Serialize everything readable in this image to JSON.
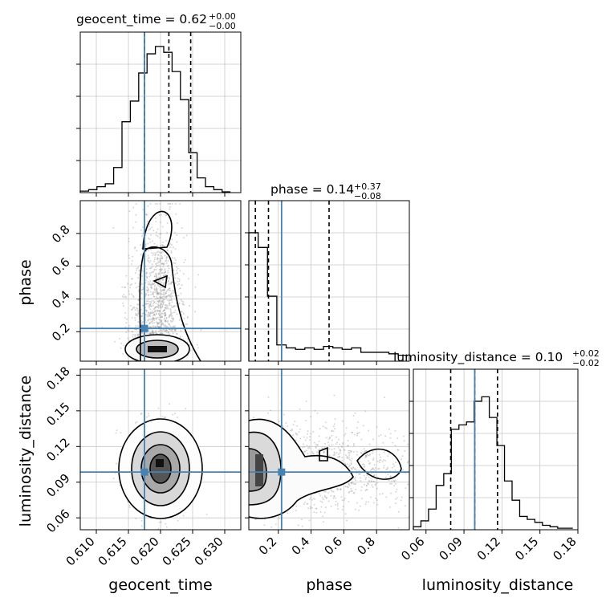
{
  "chart_data": {
    "type": "corner",
    "truth_color": "#4682b4",
    "truth": {
      "geocent_time": 0.6175,
      "phase": 0.22,
      "luminosity_distance": 0.0985
    },
    "panels": [
      {
        "id": "hist-geocent",
        "type": "histogram",
        "parameter": "geocent_time",
        "title": {
          "main": "geocent_time = 0.62",
          "sup": "+0.00",
          "sub": "−0.00"
        },
        "xlim": [
          0.6075,
          0.6325
        ],
        "ylim": [
          0,
          1.0
        ],
        "bins": [
          0.6075,
          0.6088,
          0.6101,
          0.6114,
          0.6127,
          0.614,
          0.6153,
          0.6166,
          0.6179,
          0.6192,
          0.6205,
          0.6218,
          0.6231,
          0.6244,
          0.6257,
          0.627,
          0.6283,
          0.6296,
          0.6309
        ],
        "counts": [
          0.01,
          0.02,
          0.04,
          0.06,
          0.17,
          0.48,
          0.62,
          0.81,
          0.94,
          0.99,
          0.95,
          0.82,
          0.63,
          0.27,
          0.1,
          0.04,
          0.02,
          0.005
        ],
        "quantile_lines": [
          0.6175,
          0.6213,
          0.6247
        ],
        "truth_line": 0.6175
      },
      {
        "id": "hist-phase",
        "type": "histogram",
        "parameter": "phase",
        "title": {
          "main": "phase = 0.14",
          "sup": "+0.37",
          "sub": "−0.08"
        },
        "xlim": [
          0.02,
          1.0
        ],
        "ylim": [
          0,
          1.0
        ],
        "bins": [
          0.02,
          0.077,
          0.134,
          0.191,
          0.248,
          0.305,
          0.362,
          0.419,
          0.476,
          0.533,
          0.59,
          0.647,
          0.704,
          0.761,
          0.818,
          0.875,
          0.932,
          0.99
        ],
        "counts": [
          0.87,
          0.77,
          0.44,
          0.11,
          0.09,
          0.08,
          0.09,
          0.08,
          0.1,
          0.09,
          0.08,
          0.09,
          0.06,
          0.06,
          0.06,
          0.05,
          0.04
        ],
        "quantile_lines": [
          0.06,
          0.14,
          0.51
        ],
        "truth_line": 0.22
      },
      {
        "id": "hist-distance",
        "type": "histogram",
        "parameter": "luminosity_distance",
        "title": {
          "main": "luminosity_distance = 0.10",
          "sup": "+0.02",
          "sub": "−0.02"
        },
        "xlim": [
          0.05,
          0.18
        ],
        "ylim": [
          0,
          1.0
        ],
        "bins": [
          0.05,
          0.056,
          0.062,
          0.068,
          0.074,
          0.08,
          0.086,
          0.092,
          0.098,
          0.104,
          0.11,
          0.116,
          0.122,
          0.128,
          0.134,
          0.14,
          0.146,
          0.152,
          0.158,
          0.164,
          0.17,
          0.176
        ],
        "counts": [
          0.02,
          0.06,
          0.14,
          0.3,
          0.38,
          0.68,
          0.71,
          0.73,
          0.87,
          0.9,
          0.76,
          0.57,
          0.33,
          0.2,
          0.09,
          0.07,
          0.05,
          0.03,
          0.02,
          0.01,
          0.01
        ],
        "quantile_lines": [
          0.0795,
          0.0985,
          0.1165
        ],
        "truth_line": 0.0985
      },
      {
        "id": "scatter-geocent-phase",
        "type": "density2d",
        "x": "geocent_time",
        "y": "phase",
        "xlim": [
          0.6075,
          0.6325
        ],
        "ylim": [
          0.02,
          1.0
        ],
        "truth_point": [
          0.6175,
          0.22
        ]
      },
      {
        "id": "scatter-geocent-distance",
        "type": "density2d",
        "x": "geocent_time",
        "y": "luminosity_distance",
        "xlim": [
          0.6075,
          0.6325
        ],
        "ylim": [
          0.05,
          0.185
        ],
        "truth_point": [
          0.6175,
          0.0985
        ]
      },
      {
        "id": "scatter-phase-distance",
        "type": "density2d",
        "x": "phase",
        "y": "luminosity_distance",
        "xlim": [
          0.02,
          1.0
        ],
        "ylim": [
          0.05,
          0.185
        ],
        "truth_point": [
          0.22,
          0.0985
        ]
      }
    ],
    "axes": {
      "geocent_time": {
        "label": "geocent_time",
        "ticks": [
          "0.610",
          "0.615",
          "0.620",
          "0.625",
          "0.630"
        ],
        "tick_values": [
          0.61,
          0.615,
          0.62,
          0.625,
          0.63
        ]
      },
      "phase": {
        "label": "phase",
        "ticks": [
          "0.2",
          "0.4",
          "0.6",
          "0.8"
        ],
        "tick_values": [
          0.2,
          0.4,
          0.6,
          0.8
        ]
      },
      "luminosity_distance": {
        "label": "luminosity_distance",
        "ticks": [
          "0.06",
          "0.09",
          "0.12",
          "0.15",
          "0.18"
        ],
        "tick_values": [
          0.06,
          0.09,
          0.12,
          0.15,
          0.18
        ]
      }
    },
    "grid": true
  }
}
